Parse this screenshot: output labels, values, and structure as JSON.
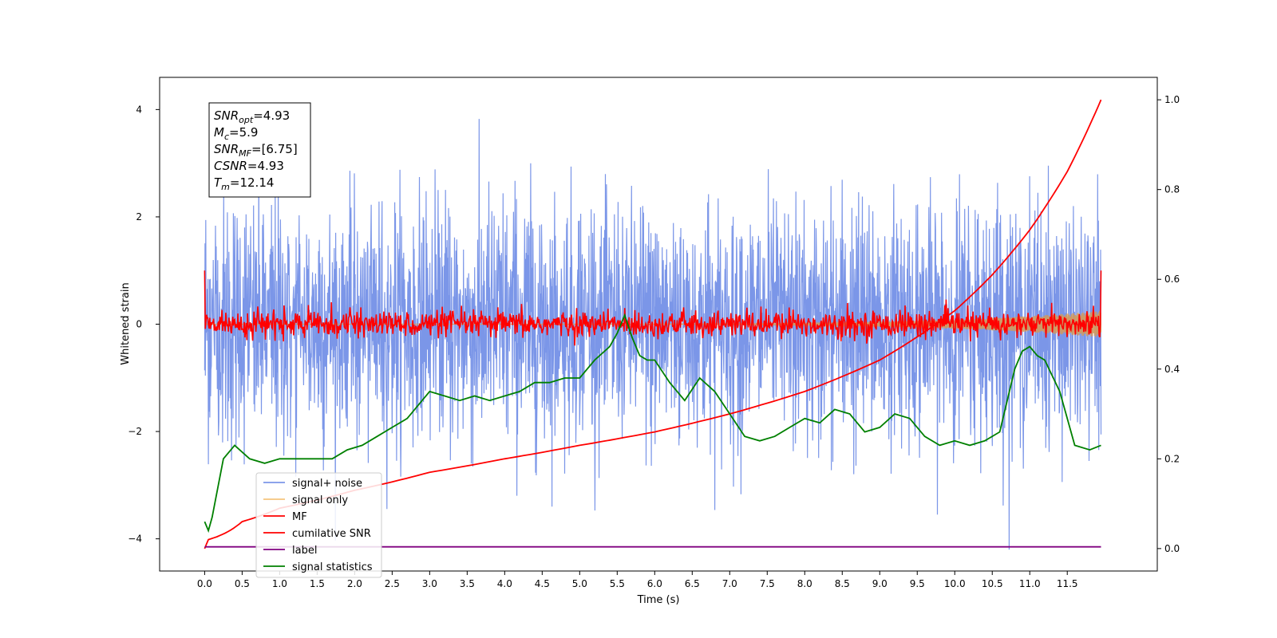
{
  "chart_data": {
    "type": "line",
    "xlabel": "Time (s)",
    "ylabel": "Whitened strain",
    "xlim": [
      -0.6,
      12.7
    ],
    "ylim": [
      -4.6,
      4.6
    ],
    "y2lim": [
      -0.05,
      1.05
    ],
    "xticks": [
      "0.0",
      "0.5",
      "1.0",
      "1.5",
      "2.0",
      "2.5",
      "3.0",
      "3.5",
      "4.0",
      "4.5",
      "5.0",
      "5.5",
      "6.0",
      "6.5",
      "7.0",
      "7.5",
      "8.0",
      "8.5",
      "9.0",
      "9.5",
      "10.0",
      "10.5",
      "11.0",
      "11.5"
    ],
    "xtick_values": [
      0,
      0.5,
      1,
      1.5,
      2,
      2.5,
      3,
      3.5,
      4,
      4.5,
      5,
      5.5,
      6,
      6.5,
      7,
      7.5,
      8,
      8.5,
      9,
      9.5,
      10,
      10.5,
      11,
      11.5
    ],
    "yticks": [
      -4,
      -2,
      0,
      2,
      4
    ],
    "y2ticks": [
      0.0,
      0.2,
      0.4,
      0.6,
      0.8,
      1.0
    ],
    "annotation": [
      {
        "base": "SNR",
        "sub": "opt",
        "value": "=4.93"
      },
      {
        "base": "M",
        "sub": "c",
        "value": "=5.9"
      },
      {
        "base": "SNR",
        "sub": "MF",
        "value": "=[6.75]"
      },
      {
        "base": "CSNR",
        "sub": "",
        "value": "=4.93"
      },
      {
        "base": "T",
        "sub": "m",
        "value": "=12.14"
      }
    ],
    "legend_position": "lower-left",
    "series": [
      {
        "name": "signal+ noise",
        "color": "#7b96e8",
        "axis": "left",
        "style": "noise",
        "x_range": [
          0,
          11.95
        ],
        "y_range": [
          -4.2,
          4.1
        ]
      },
      {
        "name": "signal only",
        "color": "#f5c57e",
        "axis": "left",
        "style": "chirp",
        "x_range": [
          0,
          11.95
        ],
        "amplitude_max": 0.25
      },
      {
        "name": "MF",
        "color": "#ff0000",
        "axis": "left",
        "style": "noise-small",
        "x_range": [
          0,
          11.95
        ],
        "y_range": [
          -0.4,
          0.5
        ],
        "endpoints": [
          1.0,
          1.0
        ]
      },
      {
        "name": "cumilative SNR",
        "color": "#ff0000",
        "axis": "right",
        "x": [
          0,
          0.05,
          0.5,
          1,
          2,
          3,
          4,
          5,
          6,
          7,
          8,
          9,
          10,
          10.5,
          11,
          11.5,
          11.95
        ],
        "values": [
          0.0,
          0.02,
          0.06,
          0.09,
          0.13,
          0.17,
          0.2,
          0.23,
          0.26,
          0.3,
          0.35,
          0.42,
          0.53,
          0.61,
          0.71,
          0.84,
          1.0
        ]
      },
      {
        "name": "label",
        "color": "#800080",
        "axis": "left",
        "x": [
          0,
          11.95
        ],
        "values": [
          -4.15,
          -4.15
        ]
      },
      {
        "name": "signal statistics",
        "color": "#008000",
        "axis": "right",
        "x": [
          0,
          0.05,
          0.1,
          0.25,
          0.4,
          0.6,
          0.8,
          1.0,
          1.1,
          1.3,
          1.5,
          1.7,
          1.9,
          2.1,
          2.3,
          2.5,
          2.7,
          2.9,
          3.0,
          3.2,
          3.4,
          3.6,
          3.8,
          4.0,
          4.2,
          4.4,
          4.6,
          4.8,
          5.0,
          5.2,
          5.4,
          5.5,
          5.6,
          5.7,
          5.8,
          5.9,
          6.0,
          6.2,
          6.4,
          6.6,
          6.8,
          7.0,
          7.2,
          7.4,
          7.6,
          7.8,
          8.0,
          8.2,
          8.4,
          8.6,
          8.8,
          9.0,
          9.2,
          9.4,
          9.6,
          9.8,
          10.0,
          10.2,
          10.4,
          10.6,
          10.8,
          10.9,
          11.0,
          11.1,
          11.2,
          11.4,
          11.6,
          11.8,
          11.95
        ],
        "values": [
          0.06,
          0.04,
          0.07,
          0.2,
          0.23,
          0.2,
          0.19,
          0.2,
          0.2,
          0.2,
          0.2,
          0.2,
          0.22,
          0.23,
          0.25,
          0.27,
          0.29,
          0.33,
          0.35,
          0.34,
          0.33,
          0.34,
          0.33,
          0.34,
          0.35,
          0.37,
          0.37,
          0.38,
          0.38,
          0.42,
          0.45,
          0.48,
          0.52,
          0.47,
          0.43,
          0.42,
          0.42,
          0.37,
          0.33,
          0.38,
          0.35,
          0.3,
          0.25,
          0.24,
          0.25,
          0.27,
          0.29,
          0.28,
          0.31,
          0.3,
          0.26,
          0.27,
          0.3,
          0.29,
          0.25,
          0.23,
          0.24,
          0.23,
          0.24,
          0.26,
          0.4,
          0.44,
          0.45,
          0.43,
          0.42,
          0.35,
          0.23,
          0.22,
          0.23
        ]
      }
    ]
  }
}
